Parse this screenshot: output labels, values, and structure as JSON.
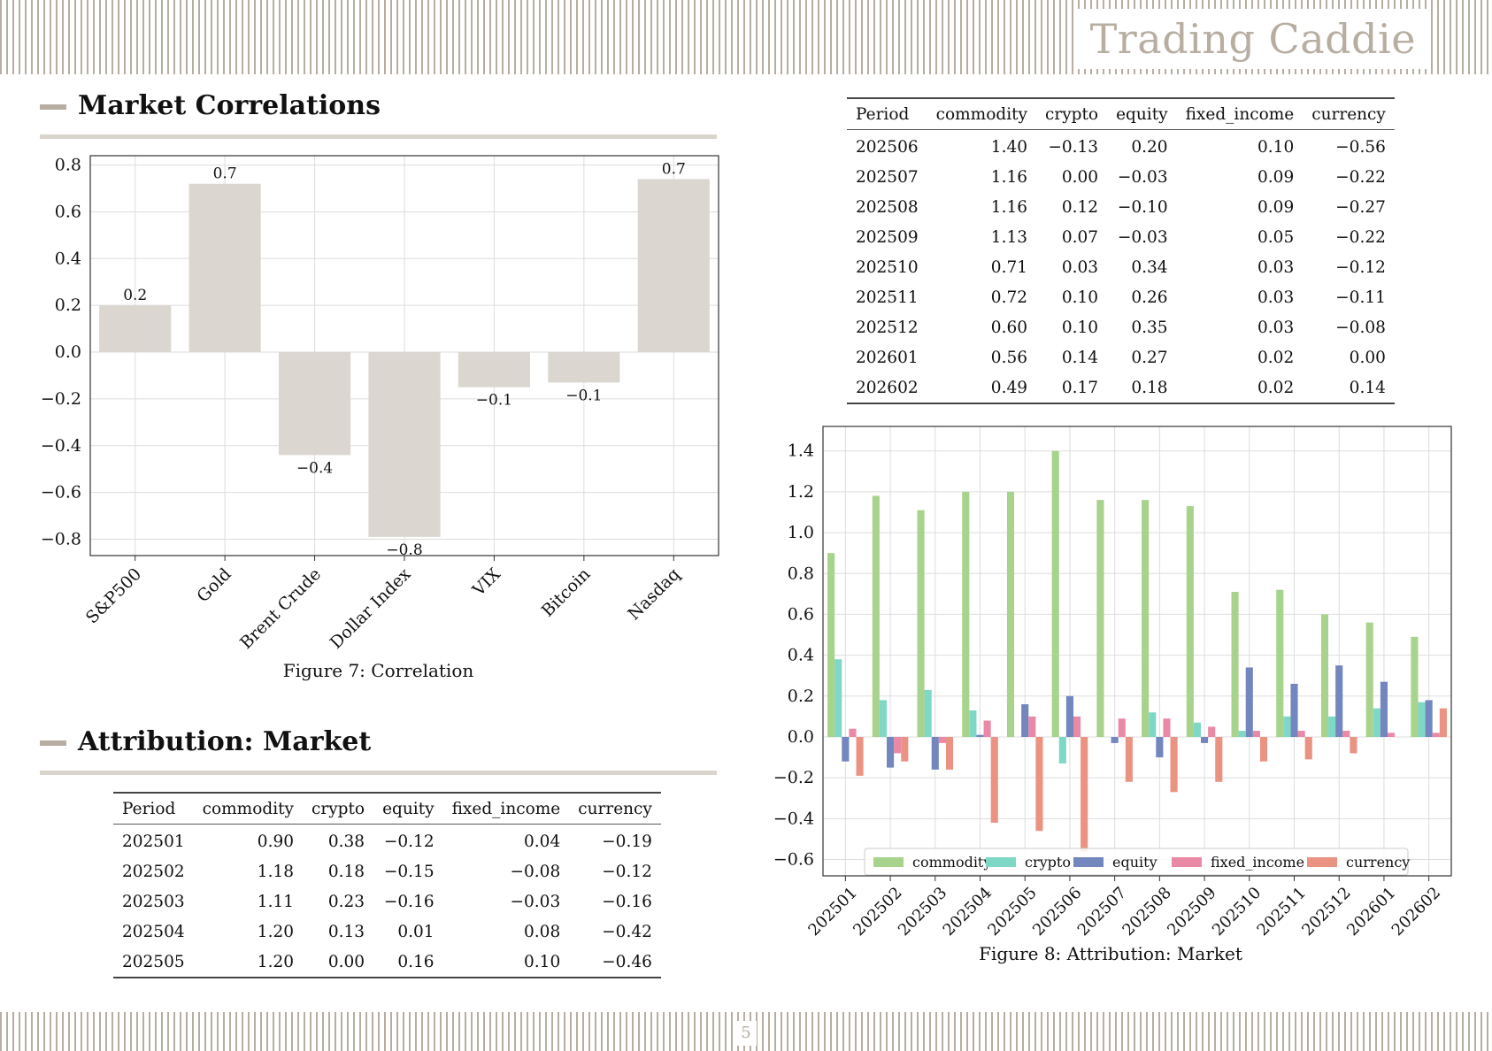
{
  "header": {
    "brand": "Trading Caddie"
  },
  "footer": {
    "page_number": "5"
  },
  "sections": {
    "correlations": {
      "title": "Market Correlations",
      "caption": "Figure 7: Correlation"
    },
    "attribution": {
      "title": "Attribution: Market",
      "caption": "Figure 8: Attribution: Market"
    }
  },
  "table_top": {
    "headers": [
      "Period",
      "commodity",
      "crypto",
      "equity",
      "fixed_income",
      "currency"
    ],
    "rows": [
      [
        "202506",
        "1.40",
        "−0.13",
        "0.20",
        "0.10",
        "−0.56"
      ],
      [
        "202507",
        "1.16",
        "0.00",
        "−0.03",
        "0.09",
        "−0.22"
      ],
      [
        "202508",
        "1.16",
        "0.12",
        "−0.10",
        "0.09",
        "−0.27"
      ],
      [
        "202509",
        "1.13",
        "0.07",
        "−0.03",
        "0.05",
        "−0.22"
      ],
      [
        "202510",
        "0.71",
        "0.03",
        "0.34",
        "0.03",
        "−0.12"
      ],
      [
        "202511",
        "0.72",
        "0.10",
        "0.26",
        "0.03",
        "−0.11"
      ],
      [
        "202512",
        "0.60",
        "0.10",
        "0.35",
        "0.03",
        "−0.08"
      ],
      [
        "202601",
        "0.56",
        "0.14",
        "0.27",
        "0.02",
        "0.00"
      ],
      [
        "202602",
        "0.49",
        "0.17",
        "0.18",
        "0.02",
        "0.14"
      ]
    ]
  },
  "table_bottom": {
    "headers": [
      "Period",
      "commodity",
      "crypto",
      "equity",
      "fixed_income",
      "currency"
    ],
    "rows": [
      [
        "202501",
        "0.90",
        "0.38",
        "−0.12",
        "0.04",
        "−0.19"
      ],
      [
        "202502",
        "1.18",
        "0.18",
        "−0.15",
        "−0.08",
        "−0.12"
      ],
      [
        "202503",
        "1.11",
        "0.23",
        "−0.16",
        "−0.03",
        "−0.16"
      ],
      [
        "202504",
        "1.20",
        "0.13",
        "0.01",
        "0.08",
        "−0.42"
      ],
      [
        "202505",
        "1.20",
        "0.00",
        "0.16",
        "0.10",
        "−0.46"
      ]
    ]
  },
  "chart_data": [
    {
      "type": "bar",
      "title": "",
      "xlabel": "",
      "ylabel": "",
      "categories": [
        "S&P500",
        "Gold",
        "Brent Crude",
        "Dollar Index",
        "VIX",
        "Bitcoin",
        "Nasdaq"
      ],
      "values": [
        0.2,
        0.72,
        -0.44,
        -0.79,
        -0.15,
        -0.13,
        0.74
      ],
      "data_labels": [
        "0.2",
        "0.7",
        "−0.4",
        "−0.8",
        "−0.1",
        "−0.1",
        "0.7"
      ],
      "yticks": [
        "−0.8",
        "−0.6",
        "−0.4",
        "−0.2",
        "0.0",
        "0.2",
        "0.4",
        "0.6",
        "0.8"
      ],
      "ylim": [
        -0.87,
        0.84
      ],
      "grid": true,
      "color": "#dbd6cf"
    },
    {
      "type": "bar",
      "title": "",
      "xlabel": "",
      "ylabel": "",
      "categories": [
        "202501",
        "202502",
        "202503",
        "202504",
        "202505",
        "202506",
        "202507",
        "202508",
        "202509",
        "202510",
        "202511",
        "202512",
        "202601",
        "202602"
      ],
      "series": [
        {
          "name": "commodity",
          "color": "#a8d38c",
          "values": [
            0.9,
            1.18,
            1.11,
            1.2,
            1.2,
            1.4,
            1.16,
            1.16,
            1.13,
            0.71,
            0.72,
            0.6,
            0.56,
            0.49
          ]
        },
        {
          "name": "crypto",
          "color": "#7fd8c6",
          "values": [
            0.38,
            0.18,
            0.23,
            0.13,
            0.0,
            -0.13,
            0.0,
            0.12,
            0.07,
            0.03,
            0.1,
            0.1,
            0.14,
            0.17
          ]
        },
        {
          "name": "equity",
          "color": "#7386bd",
          "values": [
            -0.12,
            -0.15,
            -0.16,
            0.01,
            0.16,
            0.2,
            -0.03,
            -0.1,
            -0.03,
            0.34,
            0.26,
            0.35,
            0.27,
            0.18
          ]
        },
        {
          "name": "fixed_income",
          "color": "#e989a5",
          "values": [
            0.04,
            -0.08,
            -0.03,
            0.08,
            0.1,
            0.1,
            0.09,
            0.09,
            0.05,
            0.03,
            0.03,
            0.03,
            0.02,
            0.02
          ]
        },
        {
          "name": "currency",
          "color": "#ea9382",
          "values": [
            -0.19,
            -0.12,
            -0.16,
            -0.42,
            -0.46,
            -0.56,
            -0.22,
            -0.27,
            -0.22,
            -0.12,
            -0.11,
            -0.08,
            0.0,
            0.14
          ]
        }
      ],
      "yticks": [
        "−0.6",
        "−0.4",
        "−0.2",
        "0.0",
        "0.2",
        "0.4",
        "0.6",
        "0.8",
        "1.0",
        "1.2",
        "1.4"
      ],
      "ylim": [
        -0.68,
        1.52
      ],
      "grid": true,
      "legend": "bottom-center"
    }
  ]
}
